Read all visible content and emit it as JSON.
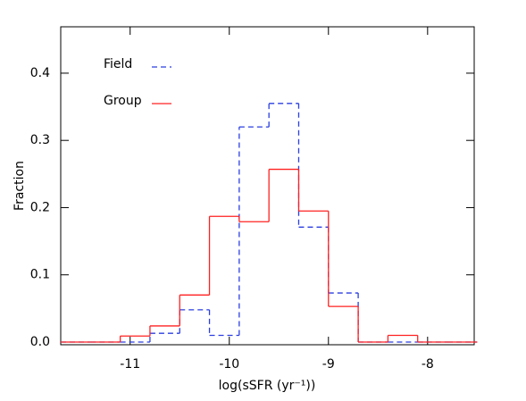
{
  "chart_data": {
    "type": "histogram",
    "xlabel": "log(sSFR (yr⁻¹))",
    "ylabel": "Fraction",
    "bins": [
      -11.7,
      -11.4,
      -11.1,
      -10.8,
      -10.5,
      -10.2,
      -9.9,
      -9.6,
      -9.3,
      -9.0,
      -8.7,
      -8.4,
      -8.1,
      -7.8,
      -7.5
    ],
    "series": [
      {
        "name": "Field",
        "color": "#2a3ee0",
        "linestyle": "dashed",
        "values": [
          0,
          0,
          0,
          0.013,
          0.048,
          0.01,
          0.32,
          0.355,
          0.171,
          0.073,
          0,
          0,
          0,
          0
        ]
      },
      {
        "name": "Group",
        "color": "#ff2020",
        "linestyle": "solid",
        "values": [
          0,
          0,
          0.009,
          0.024,
          0.07,
          0.187,
          0.179,
          0.257,
          0.195,
          0.053,
          0,
          0.01,
          0,
          0
        ]
      }
    ],
    "xlim": [
      -11.7,
      -7.53
    ],
    "xticks": [
      -11,
      -10,
      -9,
      -8
    ],
    "ylim": [
      -0.004,
      0.469
    ],
    "yticks": [
      {
        "value": 0,
        "label": "0.0"
      },
      0.1,
      0.2,
      0.3,
      0.4
    ],
    "legend": "upper left"
  }
}
